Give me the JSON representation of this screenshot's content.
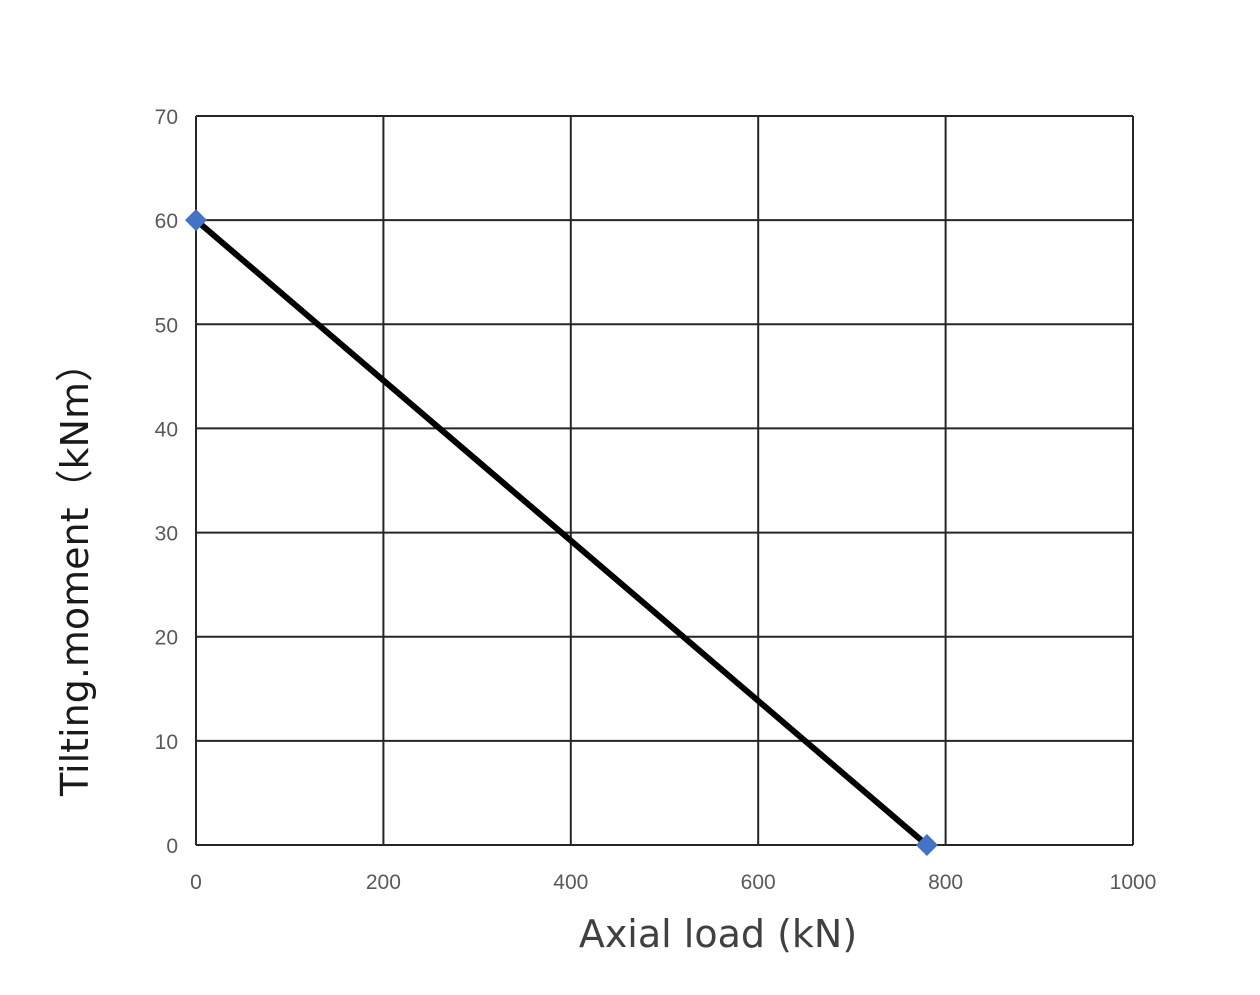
{
  "chart_data": {
    "type": "line",
    "xlabel": "Axial load (kN)",
    "ylabel": "Tilting.moment（kNm）",
    "xlim": [
      0,
      1000
    ],
    "ylim": [
      0,
      70
    ],
    "x_ticks": [
      "0",
      "200",
      "400",
      "600",
      "800",
      "1000"
    ],
    "y_ticks": [
      "0",
      "10",
      "20",
      "30",
      "40",
      "50",
      "60",
      "70"
    ],
    "grid": true,
    "series": [
      {
        "x": [
          0,
          780
        ],
        "y": [
          60,
          0
        ],
        "line_color": "#000000",
        "marker": "diamond",
        "marker_color": "#4472C4"
      }
    ]
  }
}
